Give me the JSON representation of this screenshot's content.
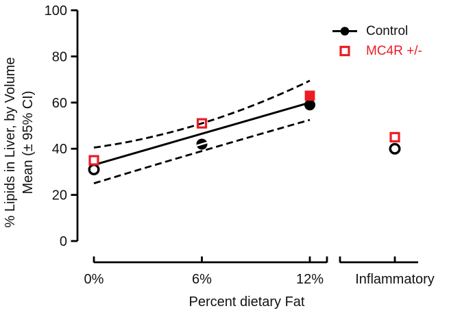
{
  "figure": {
    "ylabel_line1": "% Lipids in Liver, by Volume",
    "ylabel_line2": "Mean (± 95% CI)",
    "xlabel": "Percent dietary Fat"
  },
  "colors": {
    "axis": "#000000",
    "control": "#000000",
    "mc4r": "#ed1c24",
    "background": "#ffffff"
  },
  "chart_data": {
    "type": "scatter",
    "title": "",
    "xlabel": "Percent dietary Fat",
    "ylabel": "% Lipids in Liver, by Volume Mean (± 95% CI)",
    "x_categories": [
      "0%",
      "6%",
      "12%",
      "Inflammatory"
    ],
    "x_values_percent": [
      0,
      6,
      12
    ],
    "ylim": [
      0,
      100
    ],
    "y_ticks": [
      0,
      20,
      40,
      60,
      80,
      100
    ],
    "grid": false,
    "legend_position": "top-right",
    "series": [
      {
        "name": "Control",
        "marker": "circle",
        "color": "#000000",
        "points": [
          {
            "x": 0,
            "y": 31,
            "style": "open"
          },
          {
            "x": 6,
            "y": 42,
            "style": "filled-stripe"
          },
          {
            "x": 12,
            "y": 59,
            "style": "filled"
          }
        ],
        "inflammatory": {
          "y": 40,
          "style": "open"
        }
      },
      {
        "name": "MC4R +/-",
        "marker": "square",
        "color": "#ed1c24",
        "points": [
          {
            "x": 0,
            "y": 35,
            "style": "open"
          },
          {
            "x": 6,
            "y": 51,
            "style": "open-transparent"
          },
          {
            "x": 12,
            "y": 63,
            "style": "filled"
          }
        ],
        "inflammatory": {
          "y": 45,
          "style": "open"
        }
      }
    ],
    "regression_line": {
      "x": [
        0,
        12
      ],
      "y": [
        33,
        60
      ]
    },
    "ci_upper_dashed": {
      "x": [
        0,
        6,
        12
      ],
      "y": [
        40.5,
        51,
        69.5
      ]
    },
    "ci_lower_dashed": {
      "x": [
        0,
        6,
        12
      ],
      "y": [
        25,
        39,
        52.5
      ]
    }
  }
}
